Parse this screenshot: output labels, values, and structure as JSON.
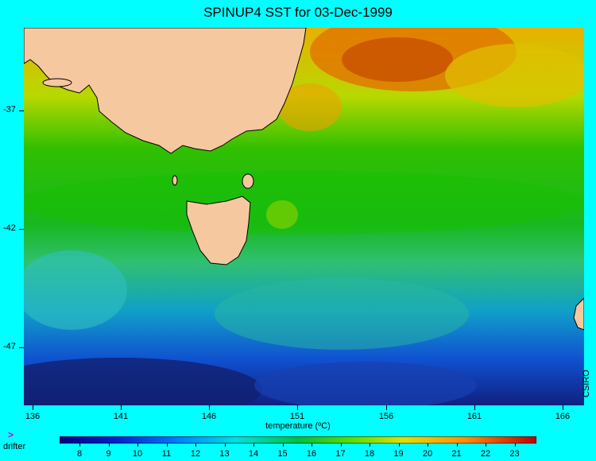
{
  "title": "SPINUP4 SST for 03-Dec-1999",
  "lat_labels": [
    "-37",
    "-42",
    "-47"
  ],
  "lon_labels": [
    "136",
    "141",
    "146",
    "151",
    "156",
    "161",
    "166"
  ],
  "credit": "CSIRO",
  "colorbar": {
    "label": "temperature (ºC)",
    "ticks": [
      "8",
      "9",
      "10",
      "11",
      "12",
      "13",
      "14",
      "15",
      "16",
      "17",
      "18",
      "19",
      "20",
      "21",
      "22",
      "23"
    ]
  },
  "legend": {
    "marker": ">",
    "label": "drifter"
  },
  "colors": {
    "background": "#00ffff",
    "land": "#f5c8a0",
    "drifter": "#d000d0"
  }
}
